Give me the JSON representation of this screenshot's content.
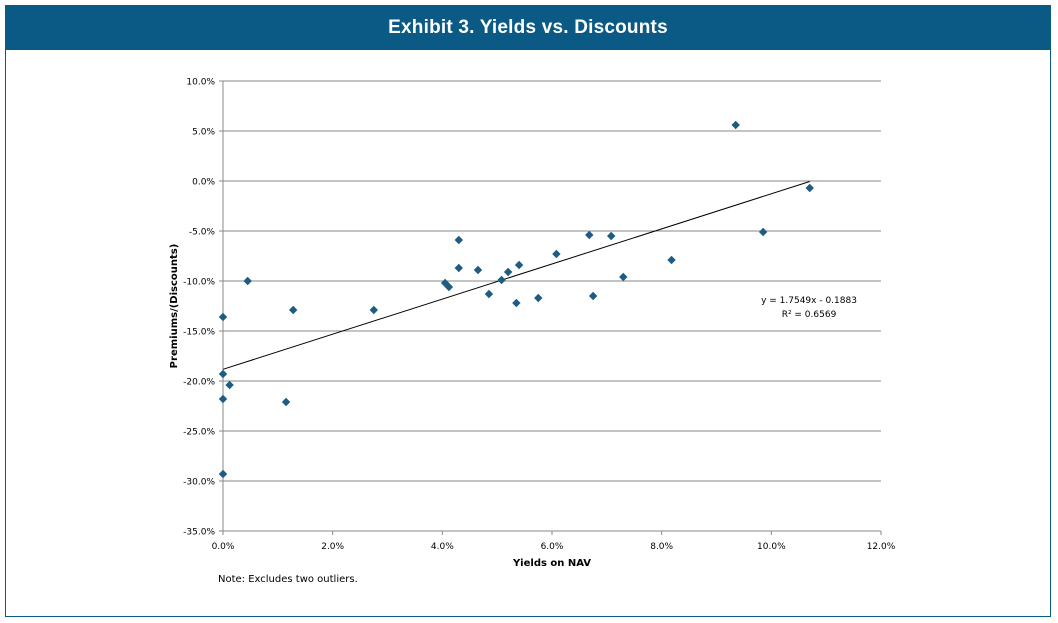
{
  "header": {
    "title": "Exhibit 3. Yields vs. Discounts"
  },
  "note": "Note: Excludes two outliers.",
  "colors": {
    "header_bg": "#0a5a85",
    "marker": "#1f5c82",
    "grid": "#8a8a8a"
  },
  "chart_data": {
    "type": "scatter",
    "title": "Exhibit 3. Yields vs. Discounts",
    "xlabel": "Yields on NAV",
    "ylabel": "Premiums/(Discounts)",
    "xlim": [
      0,
      12
    ],
    "ylim": [
      -35,
      10
    ],
    "x_ticks": [
      "0.0%",
      "2.0%",
      "4.0%",
      "6.0%",
      "8.0%",
      "10.0%",
      "12.0%"
    ],
    "y_ticks": [
      "10.0%",
      "5.0%",
      "0.0%",
      "-5.0%",
      "-10.0%",
      "-15.0%",
      "-20.0%",
      "-25.0%",
      "-30.0%",
      "-35.0%"
    ],
    "grid": "horizontal",
    "marker": "diamond",
    "points": [
      {
        "x": 0.0,
        "y": -13.6
      },
      {
        "x": 0.0,
        "y": -19.3
      },
      {
        "x": 0.0,
        "y": -21.8
      },
      {
        "x": 0.0,
        "y": -29.3
      },
      {
        "x": 0.12,
        "y": -20.4
      },
      {
        "x": 0.45,
        "y": -10.0
      },
      {
        "x": 1.15,
        "y": -22.1
      },
      {
        "x": 1.28,
        "y": -12.9
      },
      {
        "x": 2.75,
        "y": -12.9
      },
      {
        "x": 4.05,
        "y": -10.2
      },
      {
        "x": 4.12,
        "y": -10.6
      },
      {
        "x": 4.3,
        "y": -5.9
      },
      {
        "x": 4.3,
        "y": -8.7
      },
      {
        "x": 4.65,
        "y": -8.9
      },
      {
        "x": 4.85,
        "y": -11.3
      },
      {
        "x": 5.08,
        "y": -9.9
      },
      {
        "x": 5.2,
        "y": -9.1
      },
      {
        "x": 5.35,
        "y": -12.2
      },
      {
        "x": 5.4,
        "y": -8.4
      },
      {
        "x": 5.75,
        "y": -11.7
      },
      {
        "x": 6.08,
        "y": -7.3
      },
      {
        "x": 6.68,
        "y": -5.4
      },
      {
        "x": 6.75,
        "y": -11.5
      },
      {
        "x": 7.08,
        "y": -5.5
      },
      {
        "x": 7.3,
        "y": -9.6
      },
      {
        "x": 8.18,
        "y": -7.9
      },
      {
        "x": 9.35,
        "y": 5.6
      },
      {
        "x": 9.85,
        "y": -5.1
      },
      {
        "x": 10.7,
        "y": -0.7
      }
    ],
    "trendline": {
      "equation": "y = 1.7549x - 0.1883",
      "r2": "R² = 0.6569",
      "x_range": [
        0,
        10.7
      ],
      "y_range": [
        -18.83,
        -0.05
      ]
    }
  }
}
